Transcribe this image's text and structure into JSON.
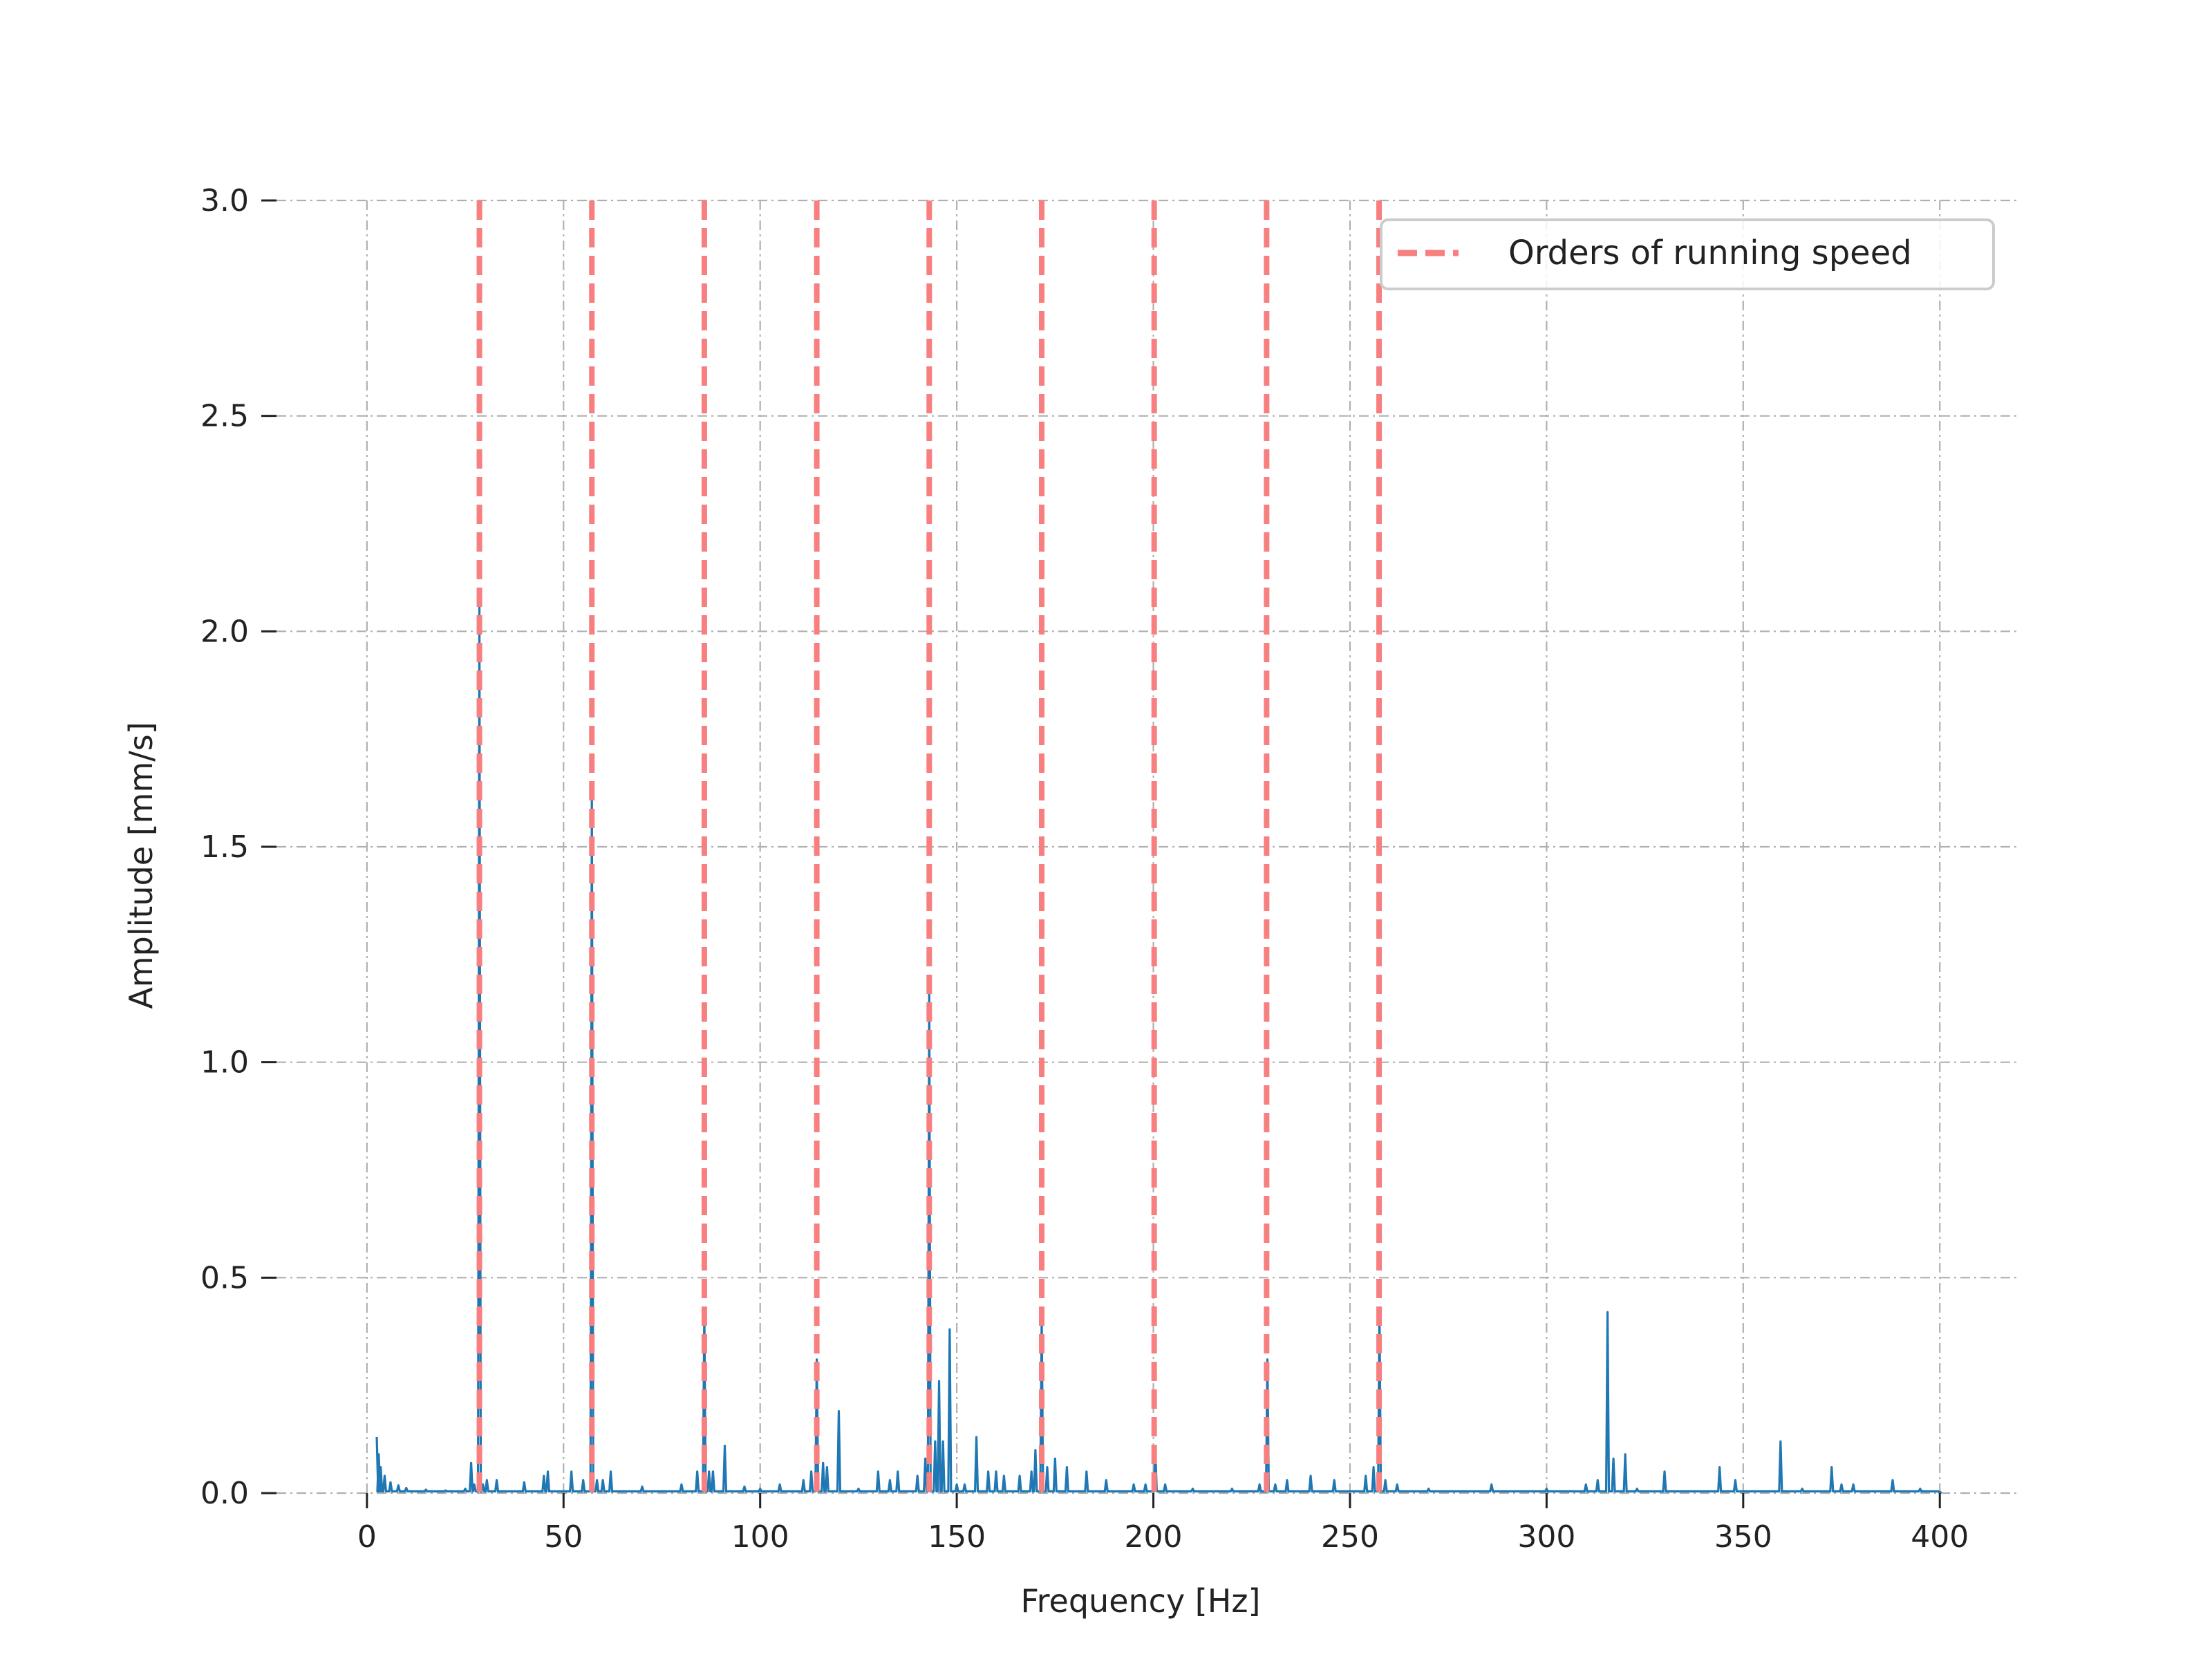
{
  "chart_data": {
    "type": "line",
    "title": "",
    "xlabel": "Frequency [Hz]",
    "ylabel": "Amplitude [mm/s]",
    "xlim": [
      -23,
      420
    ],
    "ylim": [
      0,
      3.0
    ],
    "x_ticks": [
      0,
      50,
      100,
      150,
      200,
      250,
      300,
      350,
      400
    ],
    "y_ticks": [
      0.0,
      0.5,
      1.0,
      1.5,
      2.0,
      2.5,
      3.0
    ],
    "x_tick_labels": [
      "0",
      "50",
      "100",
      "150",
      "200",
      "250",
      "300",
      "350",
      "400"
    ],
    "y_tick_labels": [
      "0.0",
      "0.5",
      "1.0",
      "1.5",
      "2.0",
      "2.5",
      "3.0"
    ],
    "grid": true,
    "legend_position": "top-right",
    "series": [
      {
        "kind": "spectrum",
        "color": "#1f77b4",
        "points": [
          [
            2.5,
            0.13
          ],
          [
            3.0,
            0.09
          ],
          [
            3.5,
            0.06
          ],
          [
            4.5,
            0.04
          ],
          [
            6,
            0.025
          ],
          [
            8,
            0.018
          ],
          [
            10,
            0.012
          ],
          [
            15,
            0.008
          ],
          [
            20,
            0.006
          ],
          [
            25,
            0.01
          ],
          [
            26.5,
            0.07
          ],
          [
            27.3,
            0.02
          ],
          [
            28.6,
            2.06
          ],
          [
            29.5,
            0.02
          ],
          [
            30.5,
            0.03
          ],
          [
            33,
            0.03
          ],
          [
            40,
            0.025
          ],
          [
            45,
            0.04
          ],
          [
            46,
            0.05
          ],
          [
            52,
            0.05
          ],
          [
            55,
            0.03
          ],
          [
            57.2,
            1.64
          ],
          [
            58.5,
            0.03
          ],
          [
            60,
            0.03
          ],
          [
            62,
            0.05
          ],
          [
            70,
            0.015
          ],
          [
            80,
            0.02
          ],
          [
            84,
            0.05
          ],
          [
            85.8,
            0.42
          ],
          [
            87,
            0.05
          ],
          [
            88,
            0.05
          ],
          [
            91,
            0.11
          ],
          [
            96,
            0.015
          ],
          [
            100,
            0.01
          ],
          [
            105,
            0.02
          ],
          [
            111,
            0.03
          ],
          [
            113,
            0.05
          ],
          [
            114.4,
            0.31
          ],
          [
            116,
            0.07
          ],
          [
            117,
            0.06
          ],
          [
            120,
            0.19
          ],
          [
            125,
            0.01
          ],
          [
            130,
            0.05
          ],
          [
            133,
            0.03
          ],
          [
            135,
            0.05
          ],
          [
            140,
            0.04
          ],
          [
            142,
            0.08
          ],
          [
            143.0,
            1.17
          ],
          [
            144.5,
            0.12
          ],
          [
            145.5,
            0.26
          ],
          [
            146.5,
            0.12
          ],
          [
            148.2,
            0.38
          ],
          [
            150,
            0.02
          ],
          [
            152,
            0.02
          ],
          [
            155,
            0.13
          ],
          [
            158,
            0.05
          ],
          [
            160,
            0.05
          ],
          [
            162,
            0.04
          ],
          [
            166,
            0.04
          ],
          [
            169,
            0.05
          ],
          [
            170,
            0.1
          ],
          [
            171.6,
            0.41
          ],
          [
            173,
            0.06
          ],
          [
            175,
            0.08
          ],
          [
            178,
            0.06
          ],
          [
            183,
            0.05
          ],
          [
            188,
            0.03
          ],
          [
            195,
            0.02
          ],
          [
            198,
            0.02
          ],
          [
            200.5,
            0.1
          ],
          [
            203,
            0.02
          ],
          [
            210,
            0.01
          ],
          [
            220,
            0.01
          ],
          [
            227,
            0.02
          ],
          [
            229.0,
            0.31
          ],
          [
            231,
            0.02
          ],
          [
            234,
            0.03
          ],
          [
            240,
            0.04
          ],
          [
            246,
            0.03
          ],
          [
            254,
            0.04
          ],
          [
            256,
            0.06
          ],
          [
            257.5,
            0.43
          ],
          [
            259,
            0.03
          ],
          [
            262,
            0.02
          ],
          [
            270,
            0.01
          ],
          [
            286,
            0.02
          ],
          [
            300,
            0.01
          ],
          [
            310,
            0.02
          ],
          [
            313,
            0.03
          ],
          [
            315.5,
            0.42
          ],
          [
            317,
            0.08
          ],
          [
            320,
            0.09
          ],
          [
            323,
            0.01
          ],
          [
            330,
            0.05
          ],
          [
            344,
            0.06
          ],
          [
            348,
            0.03
          ],
          [
            359.5,
            0.12
          ],
          [
            365,
            0.01
          ],
          [
            372.5,
            0.06
          ],
          [
            375,
            0.02
          ],
          [
            378,
            0.02
          ],
          [
            388,
            0.03
          ],
          [
            395,
            0.01
          ],
          [
            400,
            0.0
          ]
        ]
      },
      {
        "name": "Orders of running speed",
        "kind": "vlines",
        "color": "#f87f7f",
        "style": "dashed",
        "x": [
          28.6,
          57.2,
          85.8,
          114.4,
          143.0,
          171.6,
          200.2,
          228.8,
          257.4
        ]
      }
    ]
  }
}
